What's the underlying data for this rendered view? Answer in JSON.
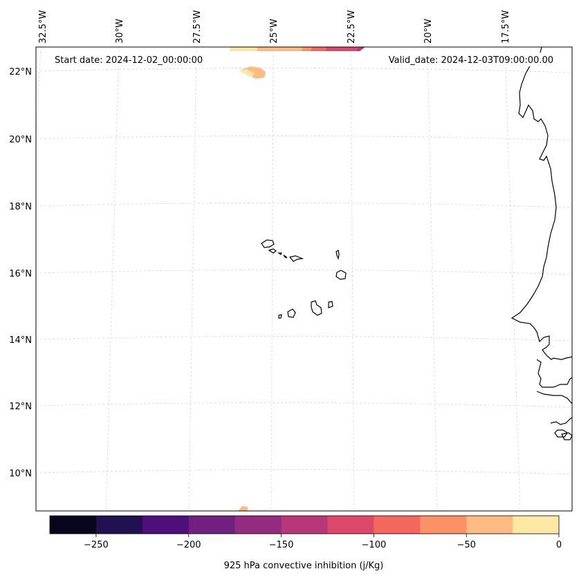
{
  "map": {
    "start_label": "Start date: 2024-12-02_00:00:00",
    "valid_label": "Valid_date: 2024-12-03T09:00:00.00",
    "lon_labels": [
      "32.5°W",
      "30°W",
      "27.5°W",
      "25°W",
      "22.5°W",
      "20°W",
      "17.5°W"
    ],
    "lat_labels": [
      "22°N",
      "20°N",
      "18°N",
      "16°N",
      "14°N",
      "12°N",
      "10°N"
    ],
    "gridlines": true,
    "coastline_color": "#000000",
    "gridline_color": "#cccccc"
  },
  "colorbar": {
    "label": "925 hPa convective inhibition (j/Kg)",
    "tick_labels": [
      "−250",
      "−200",
      "−150",
      "−100",
      "−50",
      "0"
    ],
    "colors": [
      "#07061c",
      "#221150",
      "#4e0f7a",
      "#711f81",
      "#932b80",
      "#b83779",
      "#dc4869",
      "#f3685c",
      "#fb9165",
      "#fdbb84",
      "#fce7a5"
    ],
    "levels": [
      -275,
      -250,
      -225,
      -200,
      -175,
      -150,
      -125,
      -100,
      -75,
      -50,
      -25,
      0
    ]
  }
}
